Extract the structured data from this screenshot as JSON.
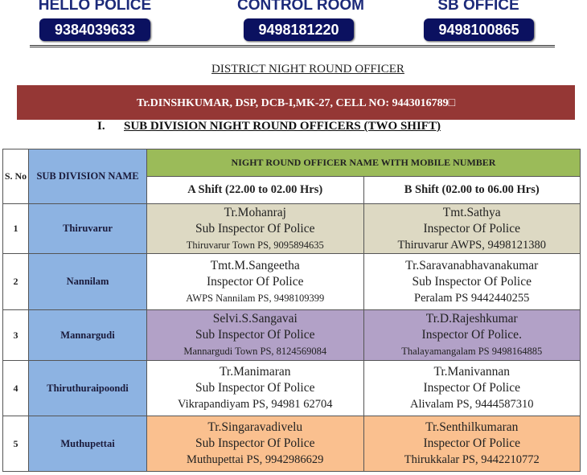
{
  "contacts": [
    {
      "label": "HELLO POLICE",
      "number": "9384039633"
    },
    {
      "label": "CONTROL ROOM",
      "number": "9498181220"
    },
    {
      "label": "SB OFFICE",
      "number": "9498100865"
    }
  ],
  "district_title": "DISTRICT NIGHT ROUND OFFICER",
  "district_officer": "Tr.DINSHKUMAR, DSP, DCB-I,MK-27, CELL NO: 9443016789□",
  "section": {
    "number": "I.",
    "title": "SUB DIVISION NIGHT ROUND OFFICERS (TWO SHIFT)"
  },
  "table": {
    "col_sno": "S. No",
    "col_subdivision": "SUB DIVISION NAME",
    "group_header": "NIGHT ROUND OFFICER NAME WITH MOBILE NUMBER",
    "shift_a": "A Shift (22.00 to 02.00 Hrs)",
    "shift_b": "B Shift (02.00 to 06.00 Hrs)",
    "row_colors": {
      "1": "#ddd9c3",
      "3": "#b2a1c7",
      "5": "#fac08f"
    },
    "rows": [
      {
        "sno": "1",
        "subdivision": "Thiruvarur",
        "a": {
          "name": "Tr.Mohanraj",
          "rank": "Sub Inspector Of Police",
          "station": "Thiruvarur Town PS, 9095894635"
        },
        "b": {
          "name": "Tmt.Sathya",
          "rank": "Inspector Of Police",
          "station": "Thiruvarur AWPS, 9498121380"
        }
      },
      {
        "sno": "2",
        "subdivision": "Nannilam",
        "a": {
          "name": "Tmt.M.Sangeetha",
          "rank": "Inspector Of Police",
          "station": "AWPS Nannilam PS, 9498109399"
        },
        "b": {
          "name": "Tr.Saravanabhavanakumar",
          "rank": "Sub Inspector Of Police",
          "station": "Peralam PS 9442440255"
        }
      },
      {
        "sno": "3",
        "subdivision": "Mannargudi",
        "a": {
          "name": "Selvi.S.Sangavai",
          "rank": "Sub Inspector Of Police",
          "station": "Mannargudi Town PS, 8124569084"
        },
        "b": {
          "name": "Tr.D.Rajeshkumar",
          "rank": "Inspector Of Police.",
          "station": "Thalayamangalam PS 9498164885"
        }
      },
      {
        "sno": "4",
        "subdivision": "Thiruthuraipoondi",
        "a": {
          "name": "Tr.Manimaran",
          "rank": "Sub Inspector Of Police",
          "station": "Vikrapandiyam PS, 94981 62704"
        },
        "b": {
          "name": "Tr.Manivannan",
          "rank": "Inspector Of Police",
          "station": "Alivalam PS, 9444587310"
        }
      },
      {
        "sno": "5",
        "subdivision": "Muthupettai",
        "a": {
          "name": "Tr.Singaravadivelu",
          "rank": "Sub Inspector Of Police",
          "station": "Muthupettai PS, 9942986629"
        },
        "b": {
          "name": "Tr.Senthilkumaran",
          "rank": "Inspector Of Police",
          "station": "Thirukkalar PS, 9442210772"
        }
      }
    ]
  }
}
